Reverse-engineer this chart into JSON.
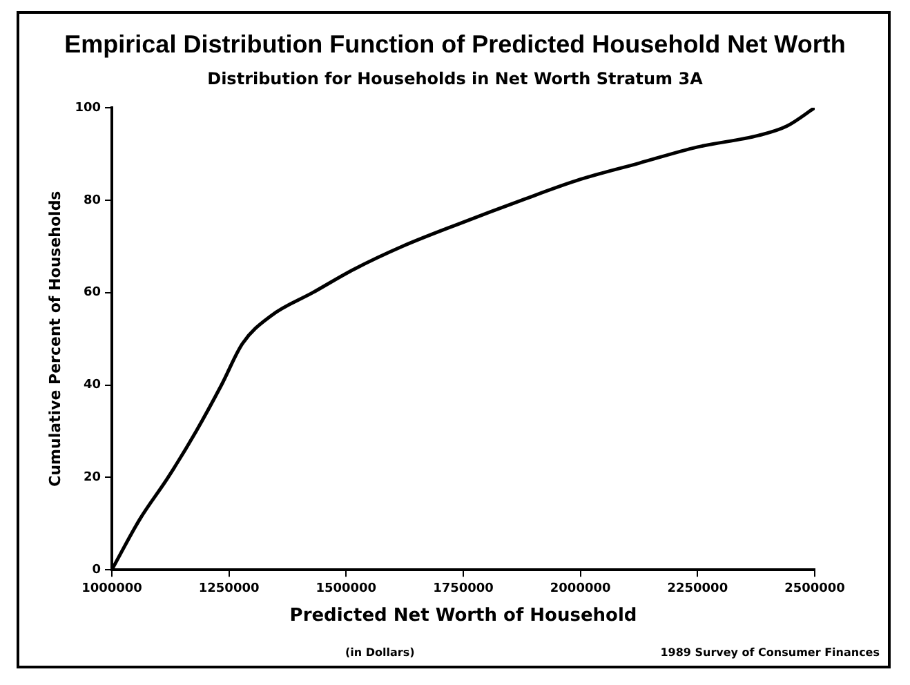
{
  "chart_data": {
    "type": "line",
    "title": "Empirical Distribution Function of Predicted Household Net Worth",
    "subtitle": "Distribution for Households in Net Worth Stratum 3A",
    "xlabel": "Predicted Net Worth of Household",
    "ylabel": "Cumulative Percent of Households",
    "annotations": [
      "(in Dollars)",
      "1989 Survey of Consumer Finances"
    ],
    "x": [
      1000000,
      1060000,
      1120000,
      1180000,
      1234000,
      1279000,
      1340000,
      1429000,
      1516000,
      1620000,
      1744000,
      1875000,
      2000000,
      2125000,
      2250000,
      2380000,
      2440000,
      2500000
    ],
    "series": [
      {
        "color": "#000000",
        "values": [
          0,
          11,
          20,
          30,
          40,
          49,
          55,
          60,
          65,
          70,
          75,
          80,
          84.5,
          88,
          91.5,
          94,
          96,
          100
        ]
      }
    ],
    "xlim": [
      1000000,
      2500000
    ],
    "xticks": [
      1000000,
      1250000,
      1500000,
      1750000,
      2000000,
      2250000,
      2500000
    ],
    "ylim": [
      0,
      100
    ],
    "yticks": [
      0,
      20,
      40,
      60,
      80,
      100
    ],
    "grid": false,
    "legend": false,
    "marker": "none",
    "line_style": "solid"
  }
}
